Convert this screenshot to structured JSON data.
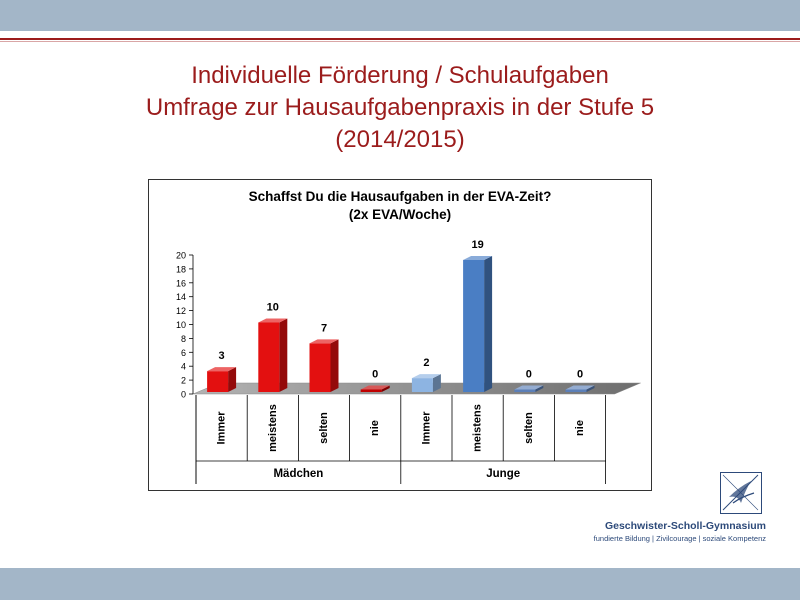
{
  "slide": {
    "title_lines": [
      "Individuelle Förderung / Schulaufgaben",
      "Umfrage zur Hausaufgabenpraxis in der Stufe 5",
      "(2014/2015)"
    ]
  },
  "chart_data": {
    "type": "bar",
    "title_lines": [
      "Schaffst Du die Hausaufgaben in der EVA-Zeit?",
      "(2x EVA/Woche)"
    ],
    "categories": [
      "Immer",
      "meistens",
      "selten",
      "nie",
      "Immer",
      "meistens",
      "selten",
      "nie"
    ],
    "groups": [
      {
        "label": "Mädchen",
        "start": 0,
        "end": 3
      },
      {
        "label": "Junge",
        "start": 4,
        "end": 7
      }
    ],
    "values": [
      3,
      10,
      7,
      0,
      2,
      19,
      0,
      0
    ],
    "data_labels": [
      "3",
      "10",
      "7",
      "0",
      "2",
      "19",
      "0",
      "0"
    ],
    "bar_colors": [
      "#e31010",
      "#e31010",
      "#e31010",
      "#c00000",
      "#8db4e2",
      "#4a7ec4",
      "#5b7fb8",
      "#5b7fb8"
    ],
    "yticks": [
      "0",
      "2",
      "4",
      "6",
      "8",
      "10",
      "12",
      "14",
      "16",
      "18",
      "20"
    ],
    "ylim": [
      0,
      20
    ],
    "grid": false,
    "legend": "none"
  },
  "logo": {
    "name": "Geschwister-Scholl-Gymnasium",
    "tagline": "fundierte Bildung | Zivilcourage | soziale Kompetenz"
  }
}
